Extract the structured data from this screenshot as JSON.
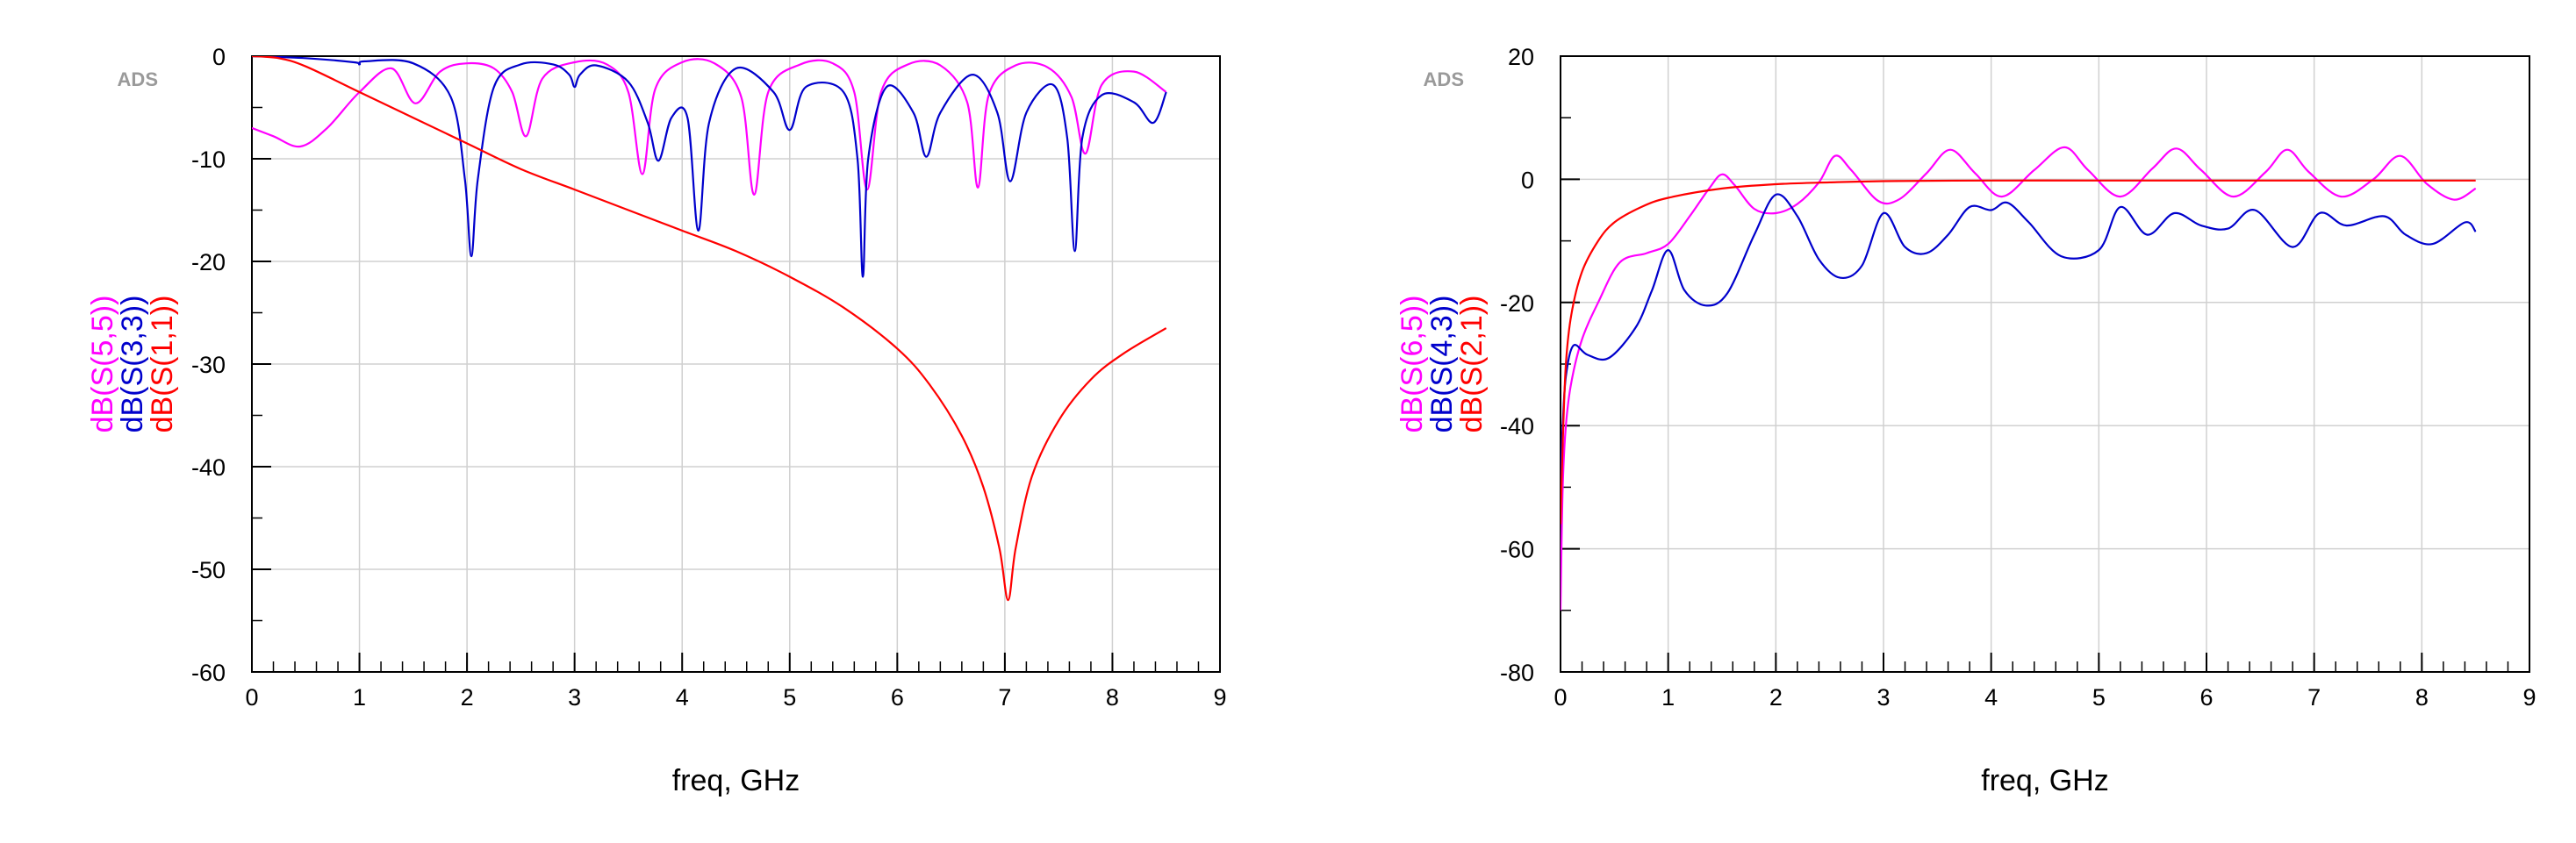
{
  "chart_data": [
    {
      "type": "line",
      "watermark": "ADS",
      "xlabel": "freq, GHz",
      "xlim": [
        0,
        9
      ],
      "ylim": [
        -60,
        0
      ],
      "xticks": [
        0,
        1,
        2,
        3,
        4,
        5,
        6,
        7,
        8,
        9
      ],
      "yticks": [
        0,
        -10,
        -20,
        -30,
        -40,
        -50,
        -60
      ],
      "grid": true,
      "series": [
        {
          "name": "dB(S(5,5))",
          "color": "#ff00ff",
          "x": [
            0,
            0.2,
            0.45,
            0.7,
            1.0,
            1.3,
            1.52,
            1.75,
            2.0,
            2.25,
            2.42,
            2.55,
            2.7,
            3.0,
            3.3,
            3.5,
            3.63,
            3.75,
            4.0,
            4.3,
            4.55,
            4.67,
            4.8,
            5.1,
            5.4,
            5.6,
            5.72,
            5.85,
            6.1,
            6.4,
            6.65,
            6.75,
            6.85,
            7.1,
            7.4,
            7.62,
            7.75,
            7.9,
            8.2,
            8.5
          ],
          "y": [
            -7,
            -7.8,
            -8.8,
            -7,
            -3.5,
            -1.2,
            -4.6,
            -1.5,
            -0.7,
            -1.2,
            -3.5,
            -7.8,
            -2.2,
            -0.6,
            -0.8,
            -3.5,
            -11.5,
            -3.2,
            -0.6,
            -0.7,
            -4,
            -13.5,
            -3.5,
            -0.8,
            -0.7,
            -3.5,
            -13,
            -3.5,
            -0.8,
            -0.9,
            -4.5,
            -12.8,
            -3.8,
            -0.9,
            -1.1,
            -4,
            -9.5,
            -2.8,
            -1.5,
            -3.5
          ]
        },
        {
          "name": "dB(S(3,3))",
          "color": "#0000cc",
          "x": [
            0,
            0.5,
            0.95,
            1.0,
            1.05,
            1.5,
            1.85,
            1.98,
            2.04,
            2.1,
            2.25,
            2.5,
            2.8,
            2.95,
            3.0,
            3.05,
            3.2,
            3.5,
            3.68,
            3.78,
            3.9,
            4.05,
            4.15,
            4.25,
            4.5,
            4.85,
            5.0,
            5.15,
            5.5,
            5.63,
            5.68,
            5.73,
            5.9,
            6.15,
            6.27,
            6.4,
            6.7,
            6.93,
            7.05,
            7.2,
            7.45,
            7.58,
            7.65,
            7.72,
            7.9,
            8.2,
            8.38,
            8.5
          ],
          "y": [
            0,
            -0.2,
            -0.6,
            -0.8,
            -0.5,
            -0.7,
            -4,
            -12,
            -19.5,
            -12,
            -3,
            -0.8,
            -0.8,
            -1.8,
            -3,
            -1.8,
            -0.9,
            -2.5,
            -6.5,
            -10.2,
            -6,
            -6,
            -17,
            -6.5,
            -1.2,
            -3.5,
            -7.2,
            -3,
            -3.5,
            -10,
            -21.5,
            -10,
            -3,
            -5.5,
            -9.8,
            -5.5,
            -1.8,
            -5.5,
            -12.2,
            -5.5,
            -2.8,
            -8,
            -19,
            -8,
            -3.8,
            -4.5,
            -6.5,
            -3.5
          ]
        },
        {
          "name": "dB(S(1,1))",
          "color": "#ff0000",
          "x": [
            0,
            0.25,
            0.5,
            1.0,
            1.5,
            2.0,
            2.5,
            3.0,
            3.5,
            4.0,
            4.5,
            5.0,
            5.5,
            6.0,
            6.3,
            6.6,
            6.8,
            6.95,
            7.03,
            7.1,
            7.25,
            7.5,
            7.8,
            8.1,
            8.5
          ],
          "y": [
            0,
            -0.2,
            -1,
            -3.5,
            -6,
            -8.5,
            -11,
            -13,
            -15,
            -17,
            -19,
            -21.5,
            -24.5,
            -28.5,
            -32,
            -37,
            -42,
            -48,
            -53,
            -48,
            -41,
            -35.5,
            -31.5,
            -29,
            -26.5
          ]
        }
      ]
    },
    {
      "type": "line",
      "watermark": "ADS",
      "xlabel": "freq, GHz",
      "xlim": [
        0,
        9
      ],
      "ylim": [
        -80,
        20
      ],
      "xticks": [
        0,
        1,
        2,
        3,
        4,
        5,
        6,
        7,
        8,
        9
      ],
      "yticks": [
        20,
        0,
        -20,
        -40,
        -60,
        -80
      ],
      "grid": true,
      "series": [
        {
          "name": "dB(S(6,5))",
          "color": "#ff00ff",
          "x": [
            0,
            0.02,
            0.05,
            0.1,
            0.2,
            0.35,
            0.55,
            0.8,
            1.0,
            1.2,
            1.38,
            1.5,
            1.62,
            1.8,
            2.0,
            2.2,
            2.4,
            2.55,
            2.7,
            2.95,
            3.15,
            3.4,
            3.62,
            3.85,
            4.1,
            4.4,
            4.68,
            4.9,
            5.2,
            5.5,
            5.72,
            5.95,
            6.25,
            6.55,
            6.75,
            6.95,
            7.25,
            7.55,
            7.8,
            8.05,
            8.3,
            8.5
          ],
          "y": [
            -70,
            -50,
            -40,
            -33,
            -26,
            -20,
            -13.5,
            -12,
            -10.5,
            -6,
            -1.5,
            0.8,
            -1,
            -4.8,
            -5.5,
            -4,
            -0.5,
            3.8,
            1.5,
            -3.5,
            -3.2,
            1,
            4.8,
            1,
            -2.8,
            1.5,
            5.2,
            1.5,
            -2.8,
            1.8,
            5,
            1.5,
            -2.8,
            1.2,
            4.8,
            1.2,
            -2.8,
            0,
            3.8,
            -0.8,
            -3.3,
            -1.5
          ]
        },
        {
          "name": "dB(S(4,3))",
          "color": "#0000cc",
          "x": [
            0,
            0.02,
            0.05,
            0.12,
            0.25,
            0.45,
            0.7,
            0.85,
            1.0,
            1.15,
            1.35,
            1.55,
            1.8,
            2.0,
            2.2,
            2.4,
            2.6,
            2.8,
            3.0,
            3.2,
            3.4,
            3.6,
            3.8,
            4.0,
            4.15,
            4.35,
            4.65,
            5.0,
            5.2,
            5.45,
            5.7,
            5.95,
            6.2,
            6.45,
            6.8,
            7.05,
            7.3,
            7.65,
            7.85,
            8.1,
            8.4,
            8.5
          ],
          "y": [
            -50,
            -40,
            -32,
            -27,
            -28.5,
            -29,
            -24,
            -18,
            -11.5,
            -18,
            -20.5,
            -18.5,
            -9,
            -2.5,
            -6,
            -13,
            -16,
            -14,
            -5.5,
            -11,
            -12,
            -9,
            -4.5,
            -5,
            -3.8,
            -7,
            -12.5,
            -11.5,
            -4.5,
            -9,
            -5.5,
            -7.5,
            -8,
            -5,
            -11,
            -5.5,
            -7.5,
            -6,
            -9,
            -10.5,
            -7,
            -8.5
          ]
        },
        {
          "name": "dB(S(2,1))",
          "color": "#ff0000",
          "x": [
            0,
            0.02,
            0.05,
            0.1,
            0.2,
            0.35,
            0.5,
            0.75,
            1.0,
            1.5,
            2.0,
            2.5,
            3.0,
            4.0,
            5.0,
            6.0,
            7.0,
            8.0,
            8.5
          ],
          "y": [
            -56,
            -43,
            -30,
            -22,
            -15,
            -10,
            -7,
            -4.5,
            -3,
            -1.5,
            -0.8,
            -0.5,
            -0.3,
            -0.2,
            -0.2,
            -0.2,
            -0.2,
            -0.2,
            -0.2
          ]
        }
      ]
    }
  ]
}
